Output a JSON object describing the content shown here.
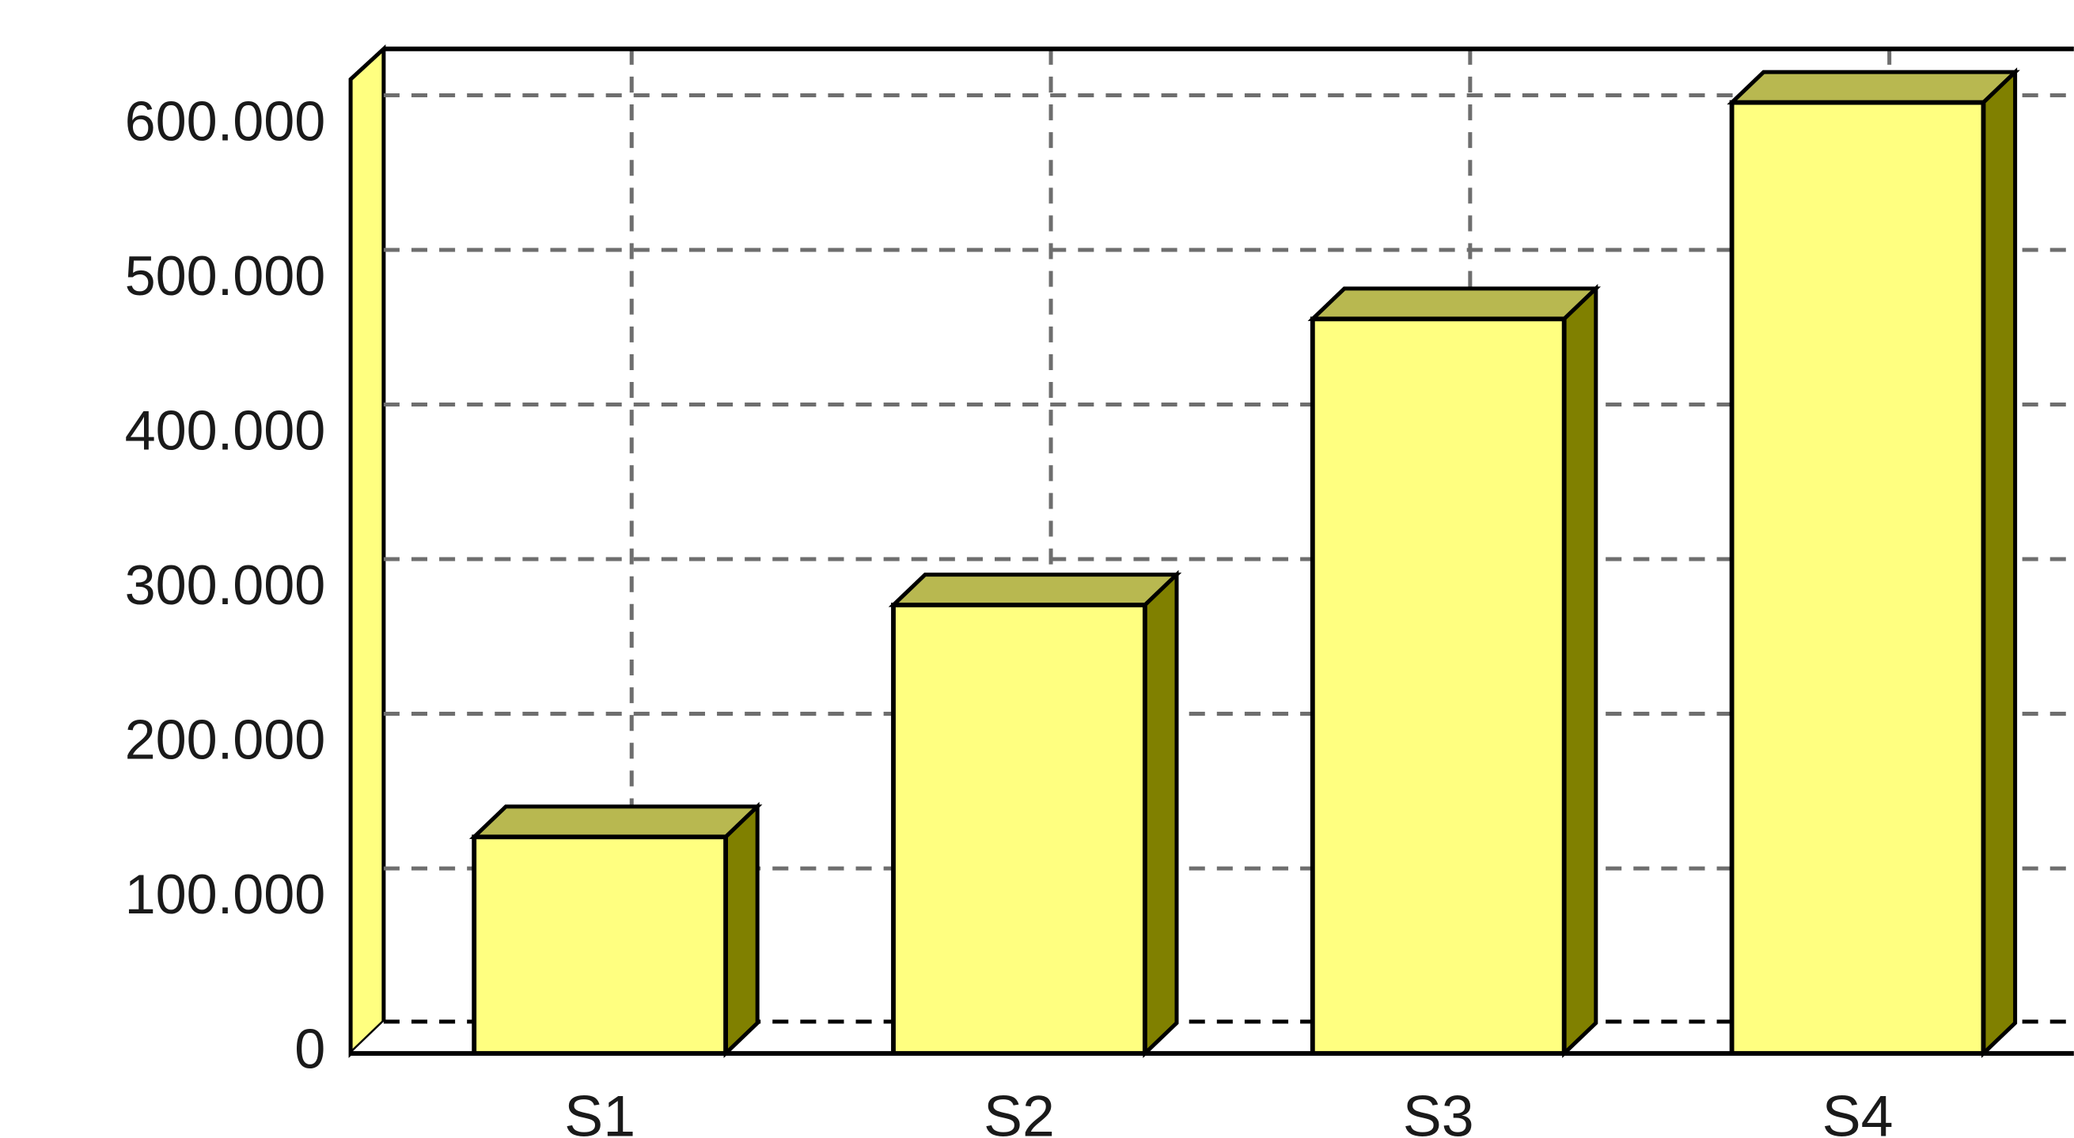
{
  "chart_data": {
    "type": "bar",
    "categories": [
      "S1",
      "S2",
      "S3",
      "S4"
    ],
    "values": [
      140000,
      290000,
      475000,
      615000
    ],
    "color": "#ffff80",
    "ylim": [
      0,
      630000
    ],
    "yticks": [
      0,
      {
        "value": 100000,
        "label": "100.000"
      },
      {
        "value": 200000,
        "label": "200.000"
      },
      {
        "value": 300000,
        "label": "300.000"
      },
      {
        "value": 400000,
        "label": "400.000"
      },
      {
        "value": 500000,
        "label": "500.000"
      },
      {
        "value": 600000,
        "label": "600.000"
      }
    ],
    "grid": true
  }
}
